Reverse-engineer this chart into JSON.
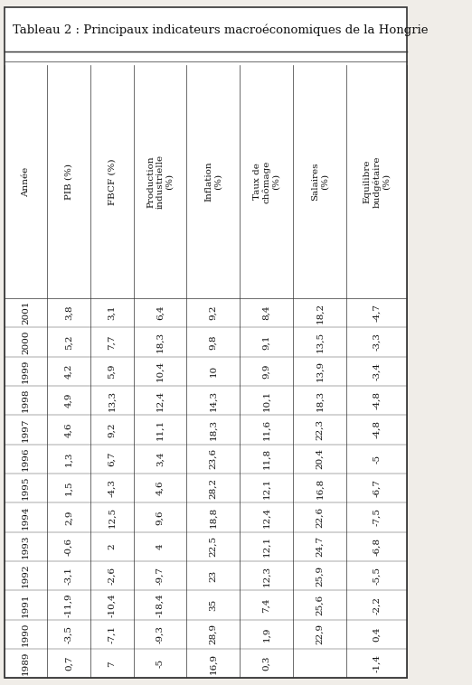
{
  "title": "Tableau 2 : Principaux indicateurs macroéconomiques de la Hongrie",
  "columns": [
    "Année",
    "PIB (%)",
    "FBCF (%)",
    "Production\nindustrielle\n(%)",
    "Inflation\n(%)",
    "Taux de\nchômage\n(%)",
    "Salaires\n(%)",
    "Equilibre\nbudgétaire\n(%)"
  ],
  "years": [
    "2001",
    "2000",
    "1999",
    "1998",
    "1997",
    "1996",
    "1995",
    "1994",
    "1993",
    "1992",
    "1991",
    "1990",
    "1989"
  ],
  "pib": [
    "3,8",
    "5,2",
    "4,2",
    "4,9",
    "4,6",
    "1,3",
    "1,5",
    "2,9",
    "-0,6",
    "-3,1",
    "-11,9",
    "-3,5",
    "0,7"
  ],
  "fbcf": [
    "3,1",
    "7,7",
    "5,9",
    "13,3",
    "9,2",
    "6,7",
    "-4,3",
    "12,5",
    "2",
    "-2,6",
    "-10,4",
    "-7,1",
    "7"
  ],
  "prod_ind": [
    "6,4",
    "18,3",
    "10,4",
    "12,4",
    "11,1",
    "3,4",
    "4,6",
    "9,6",
    "4",
    "-9,7",
    "-18,4",
    "-9,3",
    "-5"
  ],
  "inflation": [
    "9,2",
    "9,8",
    "10",
    "14,3",
    "18,3",
    "23,6",
    "28,2",
    "18,8",
    "22,5",
    "23",
    "35",
    "28,9",
    "16,9"
  ],
  "chomage": [
    "8,4",
    "9,1",
    "9,9",
    "10,1",
    "11,6",
    "11,8",
    "12,1",
    "12,4",
    "12,1",
    "12,3",
    "7,4",
    "1,9",
    "0,3"
  ],
  "salaires": [
    "18,2",
    "13,5",
    "13,9",
    "18,3",
    "22,3",
    "20,4",
    "16,8",
    "22,6",
    "24,7",
    "25,9",
    "25,6",
    "22,9",
    ""
  ],
  "equilibre": [
    "-4,7",
    "-3,3",
    "-3,4",
    "-4,8",
    "-4,8",
    "-5",
    "-6,7",
    "-7,5",
    "-6,8",
    "-5,5",
    "-2,2",
    "0,4",
    "-1,4"
  ],
  "bg_color": "#f0ede8",
  "table_bg": "#ffffff",
  "border_color": "#333333",
  "text_color": "#111111",
  "header_fontsize": 7.5,
  "data_fontsize": 7.5,
  "title_fontsize": 9.5
}
